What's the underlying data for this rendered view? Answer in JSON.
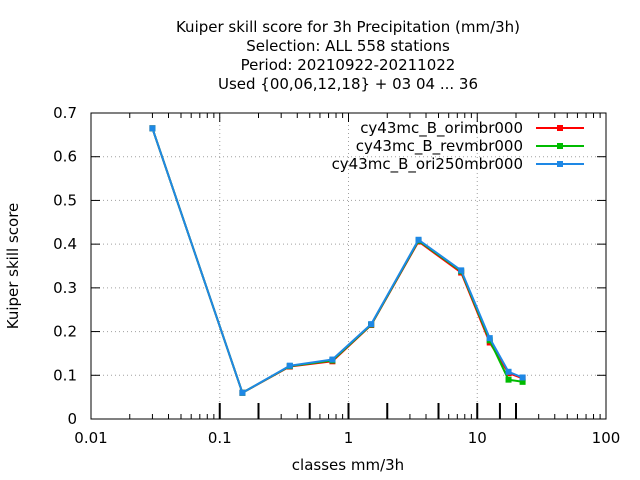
{
  "chart_data": {
    "type": "line",
    "title_lines": [
      "Kuiper skill score  for 3h Precipitation (mm/3h)",
      "Selection: ALL    558 stations",
      "Period: 20210922-20211022",
      "Used {00,06,12,18} + 03 04 ... 36"
    ],
    "xlabel": "classes mm/3h",
    "ylabel": "Kuiper skill score",
    "x_scale": "log",
    "xlim": [
      0.01,
      100
    ],
    "ylim": [
      0,
      0.7
    ],
    "x_ticks": [
      0.01,
      0.1,
      1,
      10,
      100
    ],
    "x_tick_labels": [
      "0.01",
      "0.1",
      "1",
      "10",
      "100"
    ],
    "y_ticks": [
      0,
      0.1,
      0.2,
      0.3,
      0.4,
      0.5,
      0.6,
      0.7
    ],
    "y_tick_labels": [
      "0",
      "0.1",
      "0.2",
      "0.3",
      "0.4",
      "0.5",
      "0.6",
      "0.7"
    ],
    "grid": true,
    "legend_position": "top-right",
    "threshold_ticks": [
      0.1,
      0.2,
      0.5,
      1,
      2,
      5,
      10,
      15,
      20
    ],
    "series": [
      {
        "name": "cy43mc_B_orimbr000",
        "color": "#ff0000",
        "x": [
          0.03,
          0.15,
          0.35,
          0.75,
          1.5,
          3.5,
          7.5,
          12.5,
          17.5,
          22.5
        ],
        "y": [
          0.665,
          0.06,
          0.12,
          0.132,
          0.215,
          0.406,
          0.335,
          0.175,
          0.105,
          0.093
        ]
      },
      {
        "name": "cy43mc_B_revmbr000",
        "color": "#00bb00",
        "x": [
          0.03,
          0.15,
          0.35,
          0.75,
          1.5,
          3.5,
          7.5,
          12.5,
          17.5,
          22.5
        ],
        "y": [
          0.665,
          0.06,
          0.121,
          0.134,
          0.216,
          0.408,
          0.338,
          0.18,
          0.09,
          0.085
        ]
      },
      {
        "name": "cy43mc_B_ori250mbr000",
        "color": "#1e88e5",
        "x": [
          0.03,
          0.15,
          0.35,
          0.75,
          1.5,
          3.5,
          7.5,
          12.5,
          17.5,
          22.5
        ],
        "y": [
          0.665,
          0.06,
          0.122,
          0.136,
          0.217,
          0.41,
          0.34,
          0.185,
          0.108,
          0.095
        ]
      }
    ]
  }
}
